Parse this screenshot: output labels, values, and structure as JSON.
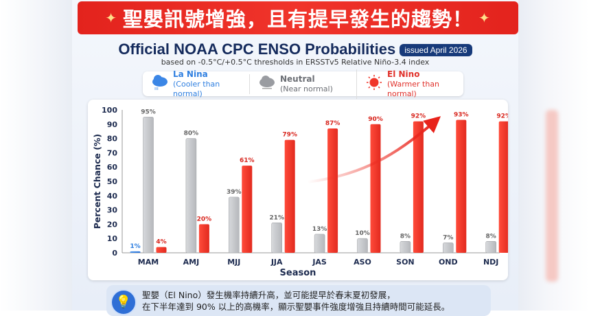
{
  "banner": {
    "text": "聖嬰訊號增強，且有提早發生的趨勢！"
  },
  "header": {
    "title": "Official NOAA CPC ENSO Probabilities",
    "badge": "issued April 2026",
    "subtitle": "based on -0.5°C/+0.5°C thresholds in ERSSTv5 Relative Niño-3.4 index"
  },
  "legend": [
    {
      "name": "La Nina",
      "desc": "(Cooler than normal)",
      "color": "#2f7fe0",
      "icon": "rain-cloud-icon"
    },
    {
      "name": "Neutral",
      "desc": "(Near normal)",
      "color": "#8a8d93",
      "icon": "cloud-icon"
    },
    {
      "name": "El Nino",
      "desc": "(Warmer than normal)",
      "color": "#f0362a",
      "icon": "sun-icon"
    }
  ],
  "chart_data": {
    "type": "bar",
    "title": "Official NOAA CPC ENSO Probabilities",
    "xlabel": "Season",
    "ylabel": "Percent Chance (%)",
    "ylim": [
      0,
      100
    ],
    "yticks": [
      0,
      10,
      20,
      30,
      40,
      50,
      60,
      70,
      80,
      90,
      100
    ],
    "grid": false,
    "categories": [
      "MAM",
      "AMJ",
      "MJJ",
      "JJA",
      "JAS",
      "ASO",
      "SON",
      "OND",
      "NDJ"
    ],
    "series": [
      {
        "name": "La Nina",
        "color": "#2f7fe0",
        "values": [
          1,
          null,
          null,
          null,
          null,
          null,
          null,
          null,
          null
        ]
      },
      {
        "name": "Neutral",
        "color": "#c4c6ca",
        "values": [
          95,
          80,
          39,
          21,
          13,
          10,
          8,
          7,
          8
        ]
      },
      {
        "name": "El Nino",
        "color": "#f0362a",
        "values": [
          4,
          20,
          61,
          79,
          87,
          90,
          92,
          93,
          92
        ]
      }
    ],
    "annotations": [
      "trend arrow rising toward OND"
    ]
  },
  "info": {
    "line1": "聖嬰（El Nino）發生機率持續升高，並可能提早於春末夏初發展，",
    "line2": "在下半年達到 90% 以上的高機率，顯示聖嬰事件強度增強且持續時間可能延長。"
  }
}
